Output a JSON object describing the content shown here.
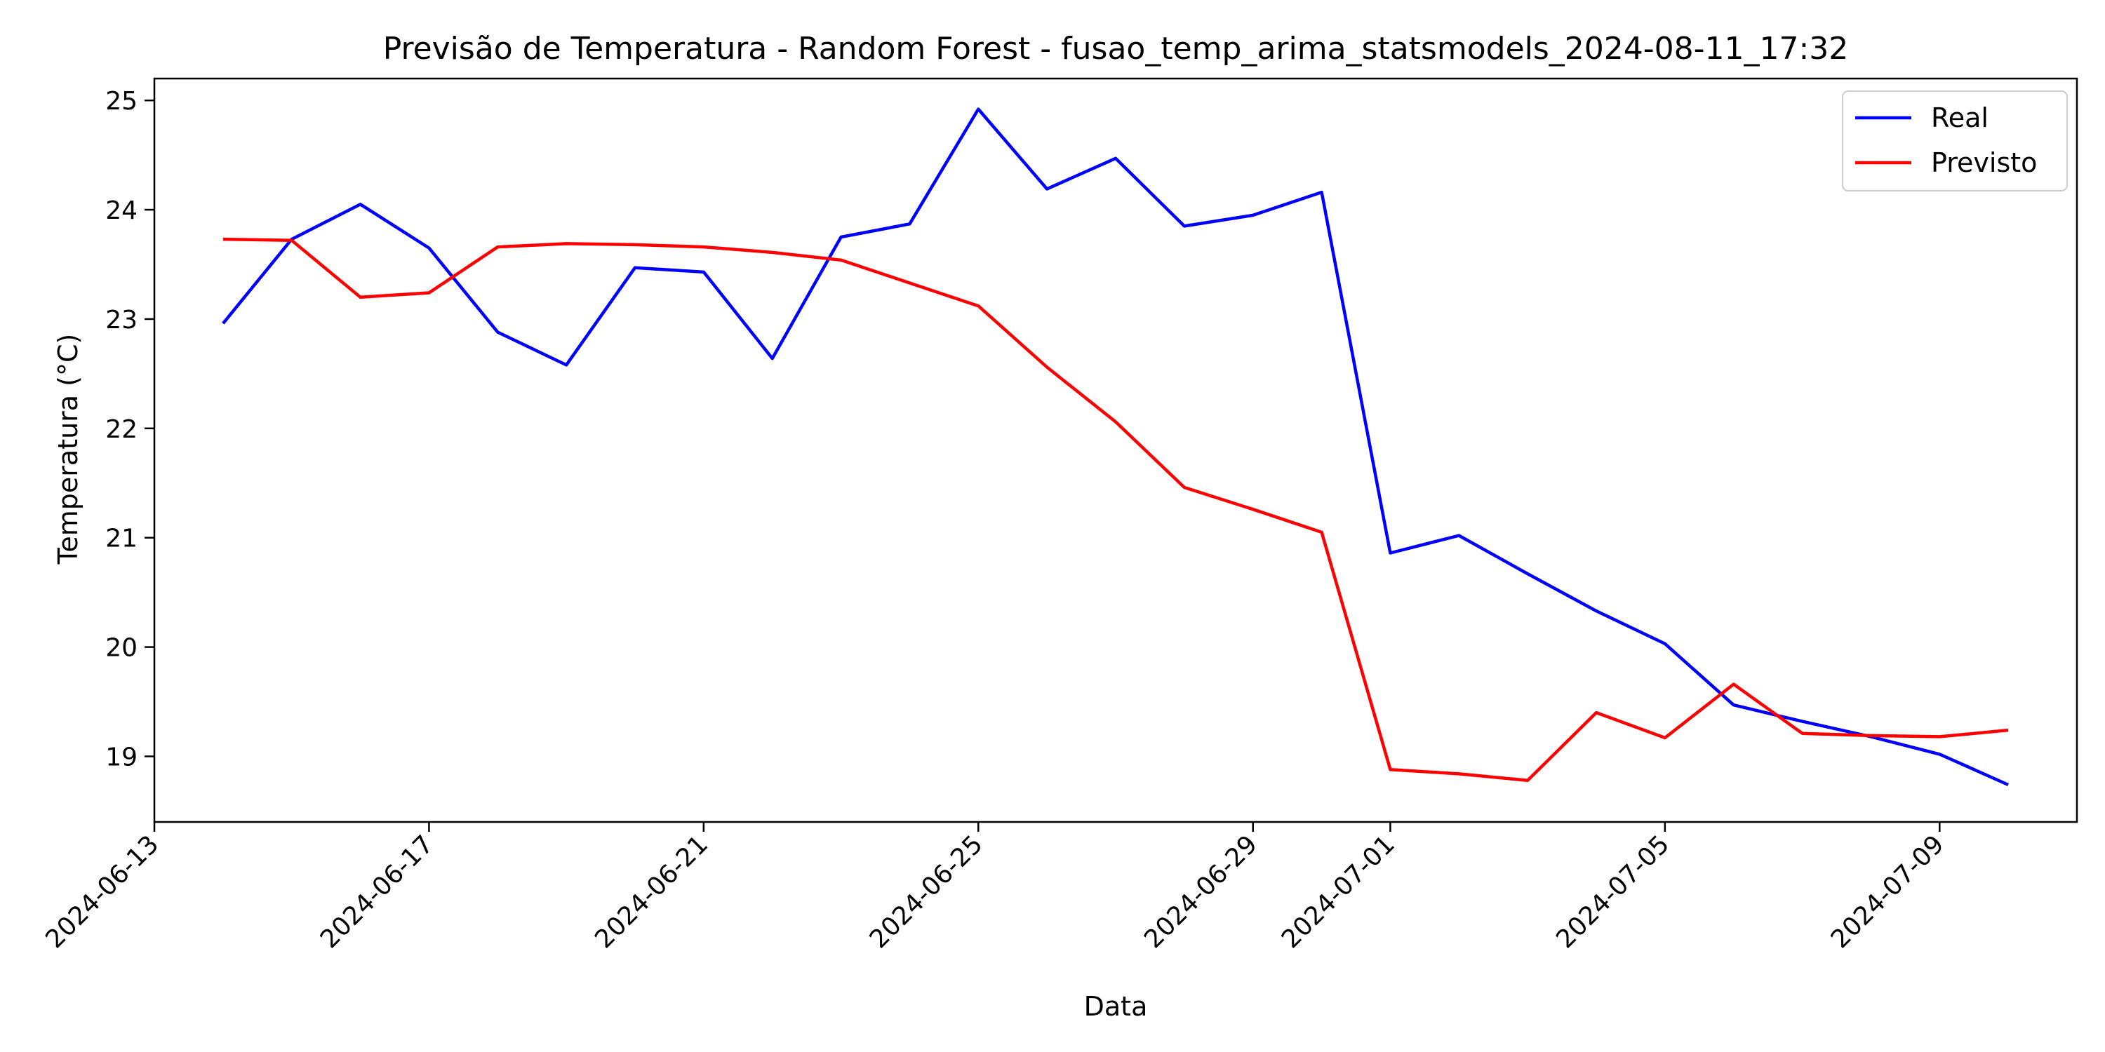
{
  "chart_data": {
    "type": "line",
    "title": "Previsão de Temperatura - Random Forest - fusao_temp_arima_statsmodels_2024-08-11_17:32",
    "xlabel": "Data",
    "ylabel": "Temperatura (°C)",
    "xlim": [
      "2024-06-13",
      "2024-07-11"
    ],
    "ylim": [
      18.4,
      25.2
    ],
    "x_ticks": [
      "2024-06-13",
      "2024-06-17",
      "2024-06-21",
      "2024-06-25",
      "2024-06-29",
      "2024-07-01",
      "2024-07-05",
      "2024-07-09"
    ],
    "y_ticks": [
      19,
      20,
      21,
      22,
      23,
      24,
      25
    ],
    "grid": false,
    "legend_position": "upper right",
    "x": [
      "2024-06-14",
      "2024-06-15",
      "2024-06-16",
      "2024-06-17",
      "2024-06-18",
      "2024-06-19",
      "2024-06-20",
      "2024-06-21",
      "2024-06-22",
      "2024-06-23",
      "2024-06-24",
      "2024-06-25",
      "2024-06-26",
      "2024-06-27",
      "2024-06-28",
      "2024-06-29",
      "2024-06-30",
      "2024-07-01",
      "2024-07-02",
      "2024-07-03",
      "2024-07-04",
      "2024-07-05",
      "2024-07-06",
      "2024-07-07",
      "2024-07-08",
      "2024-07-09",
      "2024-07-10"
    ],
    "series": [
      {
        "name": "Real",
        "color": "#0000ff",
        "values": [
          22.96,
          23.73,
          24.05,
          23.65,
          22.88,
          22.58,
          23.47,
          23.43,
          22.64,
          23.75,
          23.87,
          24.92,
          24.19,
          24.47,
          23.85,
          23.95,
          24.16,
          20.86,
          21.02,
          20.67,
          20.33,
          20.03,
          19.47,
          19.32,
          19.18,
          19.02,
          18.74
        ]
      },
      {
        "name": "Previsto",
        "color": "#ff0000",
        "values": [
          23.73,
          23.72,
          23.2,
          23.24,
          23.66,
          23.69,
          23.68,
          23.66,
          23.61,
          23.54,
          23.33,
          23.12,
          22.56,
          22.06,
          21.46,
          21.26,
          21.05,
          18.88,
          18.84,
          18.78,
          19.4,
          19.17,
          19.66,
          19.21,
          19.19,
          19.18,
          19.24
        ]
      }
    ]
  }
}
